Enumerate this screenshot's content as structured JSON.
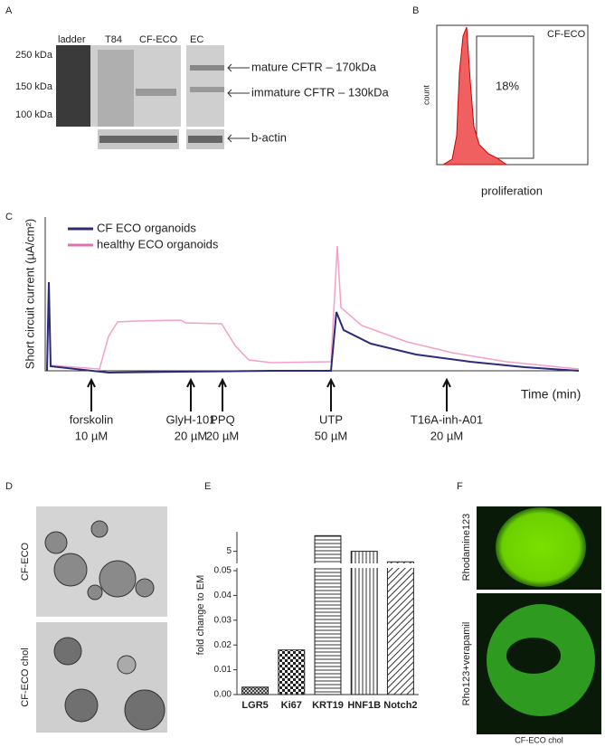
{
  "panels": {
    "a": {
      "letter": "A",
      "lanes": [
        "ladder",
        "T84",
        "CF-ECO",
        "EC"
      ],
      "markers": [
        "250 kDa",
        "150 kDa",
        "100 kDa"
      ],
      "bands": [
        "mature CFTR – 170kDa",
        "immature CFTR – 130kDa",
        "b-actin"
      ]
    },
    "b": {
      "letter": "B",
      "sample": "CF-ECO",
      "gate": "18%",
      "ylabel": "count",
      "xlabel": "proliferation"
    },
    "c": {
      "letter": "C",
      "legend": [
        {
          "name": "CF ECO organoids",
          "color": "#2e2a7a"
        },
        {
          "name": "healthy ECO organoids",
          "color": "#e070b0"
        }
      ],
      "ylabel": "Short circuit current (µA/cm²)",
      "xlabel": "Time (min)",
      "additions": [
        {
          "drug": "forskolin",
          "dose": "10 µM"
        },
        {
          "drug": "GlyH-101",
          "dose": "20 µM"
        },
        {
          "drug": "PPQ",
          "dose": "20 µM"
        },
        {
          "drug": "UTP",
          "dose": "50 µM"
        },
        {
          "drug": "T16A-inh-A01",
          "dose": "20 µM"
        }
      ]
    },
    "d": {
      "letter": "D",
      "rows": [
        "CF-ECO",
        "CF-ECO chol"
      ]
    },
    "e": {
      "letter": "E"
    },
    "f": {
      "letter": "F",
      "rows": [
        "Rhodamine123",
        "Rho123+verapamil"
      ],
      "caption": "CF-ECO chol"
    }
  },
  "chart_data": {
    "type": "bar",
    "ylabel": "fold change to EM",
    "categories": [
      "LGR5",
      "Ki67",
      "KRT19",
      "HNF1B",
      "Notch2"
    ],
    "values": [
      0.003,
      0.018,
      9,
      5,
      2.3
    ],
    "ylim": [
      0,
      10
    ],
    "ybreak": 0.05,
    "yticks": [
      {
        "value": 0,
        "label": "0.00"
      },
      {
        "value": 0.01,
        "label": "0.01"
      },
      {
        "value": 0.02,
        "label": "0.02"
      },
      {
        "value": 0.03,
        "label": "0.03"
      },
      {
        "value": 0.04,
        "label": "0.04"
      },
      {
        "value": 0.05,
        "label": "0.05"
      },
      5
    ]
  }
}
